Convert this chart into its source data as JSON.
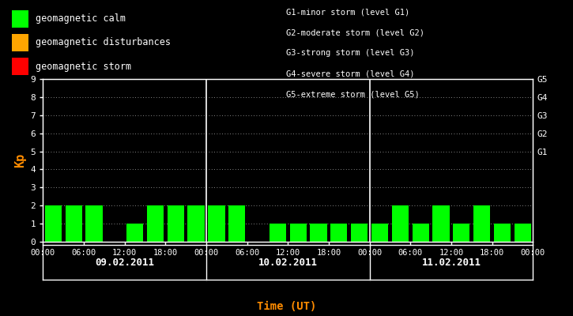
{
  "bg_color": "#000000",
  "plot_bg_color": "#000000",
  "bar_color_calm": "#00ff00",
  "bar_color_disturb": "#ffa500",
  "bar_color_storm": "#ff0000",
  "axis_color": "#ffffff",
  "ylabel_color": "#ff8c00",
  "xlabel_color": "#ff8c00",
  "tick_color": "#ffffff",
  "right_label_color": "#ffffff",
  "days": [
    "09.02.2011",
    "10.02.2011",
    "11.02.2011"
  ],
  "kp_values": [
    [
      2,
      2,
      2,
      0,
      1,
      2,
      2,
      2
    ],
    [
      2,
      2,
      0,
      1,
      1,
      1,
      1,
      1
    ],
    [
      1,
      2,
      1,
      2,
      1,
      2,
      1,
      1
    ]
  ],
  "ylim": [
    0,
    9
  ],
  "yticks": [
    0,
    1,
    2,
    3,
    4,
    5,
    6,
    7,
    8,
    9
  ],
  "right_labels": [
    "G1",
    "G2",
    "G3",
    "G4",
    "G5"
  ],
  "right_label_yticks": [
    5,
    6,
    7,
    8,
    9
  ],
  "legend_items": [
    {
      "label": "geomagnetic calm",
      "color": "#00ff00"
    },
    {
      "label": "geomagnetic disturbances",
      "color": "#ffa500"
    },
    {
      "label": "geomagnetic storm",
      "color": "#ff0000"
    }
  ],
  "storm_text": [
    "G1-minor storm (level G1)",
    "G2-moderate storm (level G2)",
    "G3-strong storm (level G3)",
    "G4-severe storm (level G4)",
    "G5-extreme storm (level G5)"
  ],
  "xlabel": "Time (UT)",
  "ylabel": "Kp"
}
